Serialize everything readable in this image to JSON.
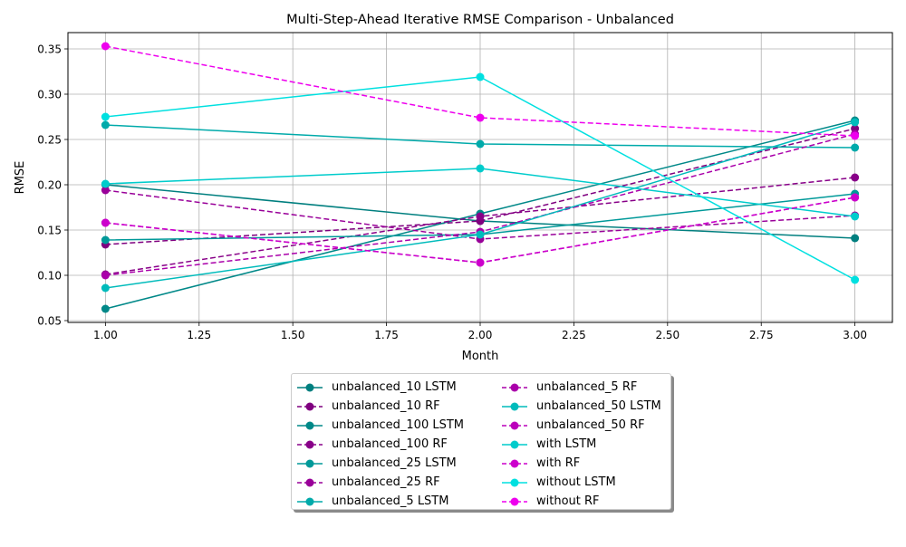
{
  "chart_data": {
    "type": "line",
    "title": "Multi-Step-Ahead Iterative RMSE Comparison - Unbalanced",
    "xlabel": "Month",
    "ylabel": "RMSE",
    "xlim": [
      0.9,
      3.1
    ],
    "ylim": [
      0.048,
      0.368
    ],
    "xticks": [
      "1.00",
      "1.25",
      "1.50",
      "1.75",
      "2.00",
      "2.25",
      "2.50",
      "2.75",
      "3.00"
    ],
    "yticks": [
      "0.05",
      "0.10",
      "0.15",
      "0.20",
      "0.25",
      "0.30",
      "0.35"
    ],
    "grid": true,
    "legend_position": "below-center",
    "x": [
      1,
      2,
      3
    ],
    "series": [
      {
        "name": "unbalanced_10 LSTM",
        "values": [
          0.2,
          0.16,
          0.141
        ],
        "style": "solid",
        "color": "#007f7f"
      },
      {
        "name": "unbalanced_10 RF",
        "values": [
          0.134,
          0.16,
          0.262
        ],
        "style": "dashed",
        "color": "#7f007f"
      },
      {
        "name": "unbalanced_100 LSTM",
        "values": [
          0.063,
          0.168,
          0.271
        ],
        "style": "solid",
        "color": "#008888"
      },
      {
        "name": "unbalanced_100 RF",
        "values": [
          0.101,
          0.165,
          0.208
        ],
        "style": "dashed",
        "color": "#880088"
      },
      {
        "name": "unbalanced_25 LSTM",
        "values": [
          0.139,
          0.145,
          0.19
        ],
        "style": "solid",
        "color": "#009999"
      },
      {
        "name": "unbalanced_25 RF",
        "values": [
          0.194,
          0.14,
          0.166
        ],
        "style": "dashed",
        "color": "#990099"
      },
      {
        "name": "unbalanced_5 LSTM",
        "values": [
          0.266,
          0.245,
          0.241
        ],
        "style": "solid",
        "color": "#00aaaa"
      },
      {
        "name": "unbalanced_5 RF",
        "values": [
          0.1,
          0.148,
          0.256
        ],
        "style": "dashed",
        "color": "#aa00aa"
      },
      {
        "name": "unbalanced_50 LSTM",
        "values": [
          0.086,
          0.145,
          0.269
        ],
        "style": "solid",
        "color": "#00bbbb"
      },
      {
        "name": "unbalanced_50 RF",
        "values": [
          0.158,
          0.114,
          0.186
        ],
        "style": "dashed",
        "color": "#bb00bb"
      },
      {
        "name": "with LSTM",
        "values": [
          0.201,
          0.218,
          0.165
        ],
        "style": "solid",
        "color": "#00cccc"
      },
      {
        "name": "with RF",
        "values": [
          0.158,
          0.114,
          0.186
        ],
        "style": "dashed",
        "color": "#cc00cc"
      },
      {
        "name": "without LSTM",
        "values": [
          0.275,
          0.319,
          0.095
        ],
        "style": "solid",
        "color": "#00e0e0"
      },
      {
        "name": "without RF",
        "values": [
          0.353,
          0.274,
          0.254
        ],
        "style": "dashed",
        "color": "#ee00ee"
      }
    ]
  }
}
